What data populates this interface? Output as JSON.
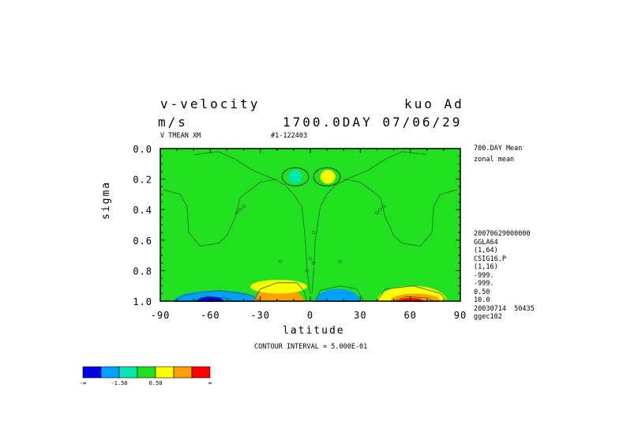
{
  "header": {
    "title": "v-velocity",
    "units": "m/s",
    "model": "kuo Ad",
    "time": "1700.0DAY 07/06/29",
    "var_desc": "V TMEAN XM",
    "run_id": "#1-122403"
  },
  "right_info": {
    "line1": "700.DAY Mean",
    "line2": "zonal mean",
    "meta": [
      "20070629000000",
      "GGLA64",
      "(1,64)",
      "CSIG16.P",
      "(1,16)",
      "-999.",
      "-999.",
      "0.50",
      "10.0",
      "20030714  50435",
      "ggec102"
    ]
  },
  "contour_interval": "CONTOUR INTERVAL = 5.000E-01",
  "colorbar": {
    "colors": [
      "#0000e8",
      "#00a0ff",
      "#00e8b0",
      "#20e020",
      "#ffff00",
      "#ffa000",
      "#ff0000"
    ],
    "labels": [
      "-∞",
      "-1.50",
      "0.50",
      "∞"
    ]
  },
  "chart_data": {
    "type": "contour",
    "xlabel": "latitude",
    "ylabel": "sigma",
    "xlim": [
      -90,
      90
    ],
    "ylim": [
      1.0,
      0.0
    ],
    "xticks": [
      -90,
      -60,
      -30,
      0,
      30,
      60,
      90
    ],
    "xtick_labels": [
      "-90",
      "-60",
      "-30",
      "0",
      "30",
      "60",
      "90"
    ],
    "yticks": [
      0.0,
      0.2,
      0.4,
      0.6,
      0.8,
      1.0
    ],
    "ytick_labels": [
      "0.0",
      "0.2",
      "0.4",
      "0.6",
      "0.8",
      "1.0"
    ],
    "background_color": "#20e020",
    "regions": [
      {
        "color": "#00a0ff",
        "lat": [
          -82,
          -30
        ],
        "sigma": [
          0.93,
          1.0
        ]
      },
      {
        "color": "#0000e8",
        "lat": [
          -68,
          -52
        ],
        "sigma": [
          0.97,
          1.0
        ]
      },
      {
        "color": "#ffa000",
        "lat": [
          -34,
          -4
        ],
        "sigma": [
          0.91,
          1.0
        ]
      },
      {
        "color": "#ffff00",
        "lat": [
          -36,
          -2
        ],
        "sigma": [
          0.86,
          0.95
        ]
      },
      {
        "color": "#00a0ff",
        "lat": [
          3,
          30
        ],
        "sigma": [
          0.92,
          1.0
        ]
      },
      {
        "color": "#ffff00",
        "lat": [
          40,
          82
        ],
        "sigma": [
          0.9,
          1.0
        ]
      },
      {
        "color": "#ffa000",
        "lat": [
          48,
          78
        ],
        "sigma": [
          0.95,
          1.0
        ]
      },
      {
        "color": "#ff0000",
        "lat": [
          53,
          68
        ],
        "sigma": [
          0.98,
          1.0
        ]
      },
      {
        "color": "#00e8b0",
        "lat": [
          -13,
          -5
        ],
        "sigma": [
          0.14,
          0.23
        ]
      },
      {
        "color": "#ffff00",
        "lat": [
          6,
          15
        ],
        "sigma": [
          0.14,
          0.23
        ]
      }
    ]
  }
}
